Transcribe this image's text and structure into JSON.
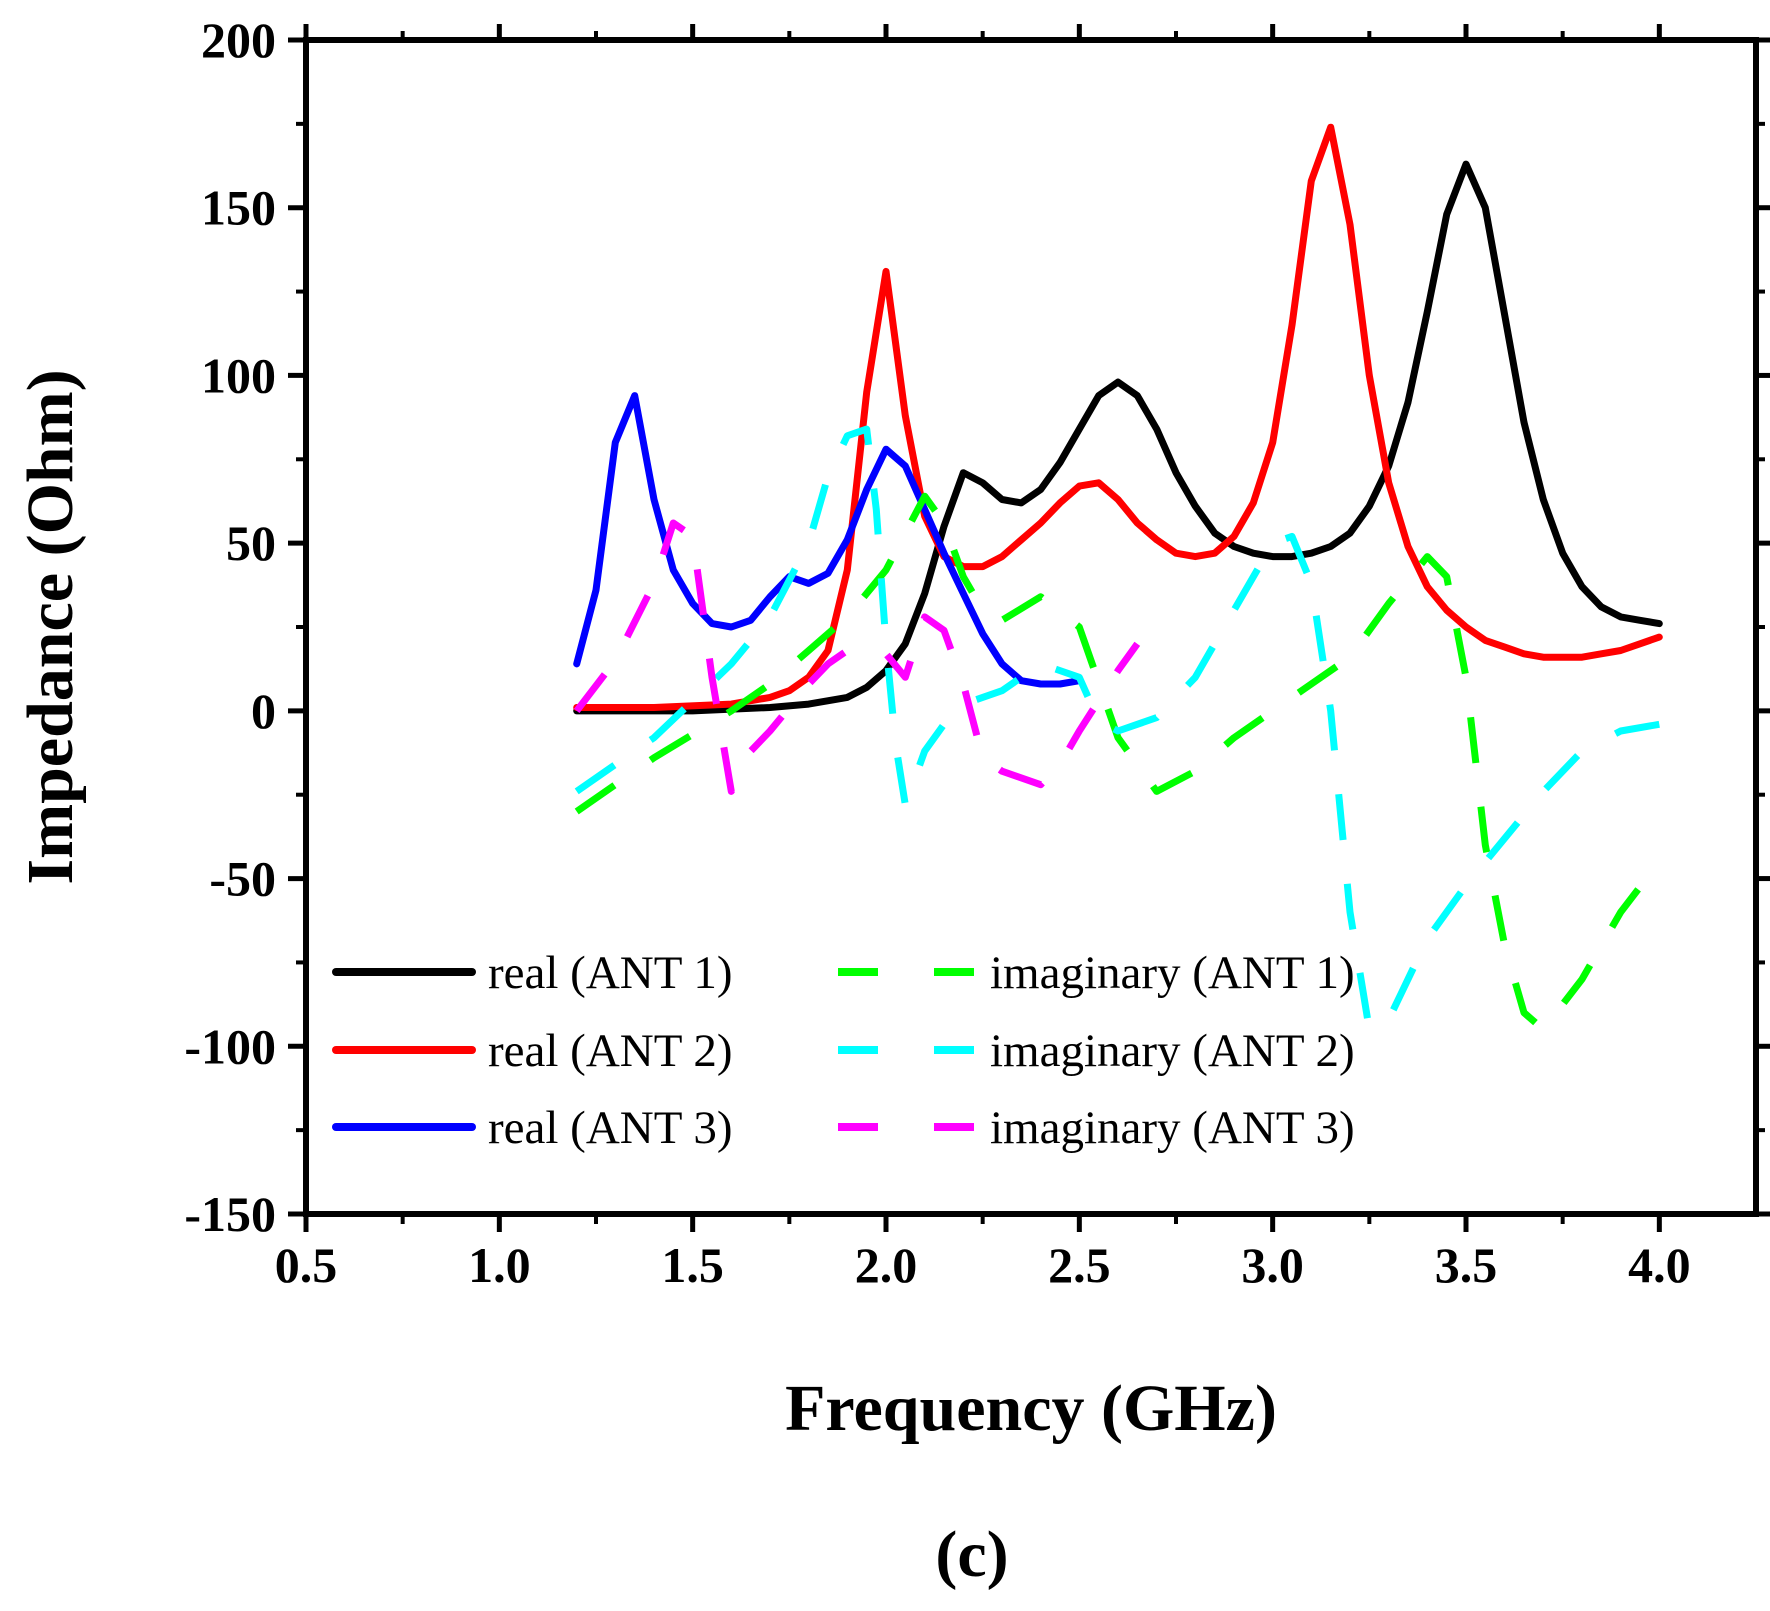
{
  "chart_data": {
    "type": "line",
    "xlabel": "Frequency (GHz)",
    "ylabel": "Impedance (Ohm)",
    "xlim": [
      0.5,
      4.25
    ],
    "ylim": [
      -150,
      200
    ],
    "xticks": [
      0.5,
      1.0,
      1.5,
      2.0,
      2.5,
      3.0,
      3.5,
      4.0
    ],
    "xtick_labels": [
      "0.5",
      "1.0",
      "1.5",
      "2.0",
      "2.5",
      "3.0",
      "3.5",
      "4.0"
    ],
    "yticks": [
      -150,
      -100,
      -50,
      0,
      50,
      100,
      150,
      200
    ],
    "ytick_labels": [
      "-150",
      "-100",
      "-50",
      "0",
      "50",
      "100",
      "150",
      "200"
    ],
    "grid": false,
    "legend_position": "bottom-left",
    "caption": "(c)",
    "series": [
      {
        "name": "real (ANT 1)",
        "color": "#000000",
        "dash": "solid",
        "x": [
          1.2,
          1.5,
          1.7,
          1.8,
          1.9,
          1.95,
          2.0,
          2.05,
          2.1,
          2.15,
          2.2,
          2.25,
          2.3,
          2.35,
          2.4,
          2.45,
          2.5,
          2.55,
          2.6,
          2.65,
          2.7,
          2.75,
          2.8,
          2.85,
          2.9,
          2.95,
          3.0,
          3.05,
          3.1,
          3.15,
          3.2,
          3.25,
          3.3,
          3.35,
          3.4,
          3.45,
          3.5,
          3.55,
          3.6,
          3.65,
          3.7,
          3.75,
          3.8,
          3.85,
          3.9,
          3.95,
          4.0
        ],
        "y": [
          0,
          0,
          1,
          2,
          4,
          7,
          12,
          20,
          35,
          55,
          71,
          68,
          63,
          62,
          66,
          74,
          84,
          94,
          98,
          94,
          84,
          71,
          61,
          53,
          49,
          47,
          46,
          46,
          47,
          49,
          53,
          61,
          73,
          92,
          119,
          148,
          163,
          150,
          118,
          86,
          63,
          47,
          37,
          31,
          28,
          27,
          26
        ]
      },
      {
        "name": "real (ANT 2)",
        "color": "#ff0000",
        "dash": "solid",
        "x": [
          1.2,
          1.4,
          1.6,
          1.7,
          1.75,
          1.8,
          1.85,
          1.9,
          1.95,
          2.0,
          2.05,
          2.1,
          2.15,
          2.2,
          2.25,
          2.3,
          2.35,
          2.4,
          2.45,
          2.5,
          2.55,
          2.6,
          2.65,
          2.7,
          2.75,
          2.8,
          2.85,
          2.9,
          2.95,
          3.0,
          3.05,
          3.1,
          3.15,
          3.2,
          3.25,
          3.3,
          3.35,
          3.4,
          3.45,
          3.5,
          3.55,
          3.6,
          3.65,
          3.7,
          3.75,
          3.8,
          3.85,
          3.9,
          3.95,
          4.0
        ],
        "y": [
          1,
          1,
          2,
          4,
          6,
          10,
          18,
          42,
          95,
          131,
          88,
          58,
          46,
          43,
          43,
          46,
          51,
          56,
          62,
          67,
          68,
          63,
          56,
          51,
          47,
          46,
          47,
          52,
          62,
          80,
          115,
          158,
          174,
          145,
          100,
          68,
          49,
          37,
          30,
          25,
          21,
          19,
          17,
          16,
          16,
          16,
          17,
          18,
          20,
          22
        ]
      },
      {
        "name": "real (ANT 3)",
        "color": "#0000ff",
        "dash": "solid",
        "x": [
          1.2,
          1.25,
          1.3,
          1.35,
          1.4,
          1.45,
          1.5,
          1.55,
          1.6,
          1.65,
          1.7,
          1.75,
          1.8,
          1.85,
          1.9,
          1.95,
          2.0,
          2.05,
          2.1,
          2.15,
          2.2,
          2.25,
          2.3,
          2.35,
          2.4,
          2.45,
          2.5
        ],
        "y": [
          14,
          36,
          80,
          94,
          63,
          42,
          32,
          26,
          25,
          27,
          34,
          40,
          38,
          41,
          51,
          66,
          78,
          73,
          60,
          47,
          35,
          23,
          14,
          9,
          8,
          8,
          9
        ]
      },
      {
        "name": "imaginary (ANT 1)",
        "color": "#00ff00",
        "dash": "dashed",
        "x": [
          1.2,
          1.4,
          1.6,
          1.7,
          1.8,
          1.9,
          2.0,
          2.1,
          2.15,
          2.2,
          2.25,
          2.3,
          2.4,
          2.5,
          2.6,
          2.7,
          2.8,
          2.9,
          3.0,
          3.1,
          3.2,
          3.3,
          3.4,
          3.45,
          3.5,
          3.55,
          3.6,
          3.65,
          3.7,
          3.8,
          3.9,
          4.0
        ],
        "y": [
          -30,
          -14,
          0,
          8,
          18,
          28,
          42,
          64,
          56,
          40,
          30,
          27,
          34,
          25,
          -8,
          -24,
          -18,
          -8,
          0,
          8,
          16,
          32,
          46,
          40,
          10,
          -40,
          -70,
          -90,
          -95,
          -80,
          -60,
          -45
        ]
      },
      {
        "name": "imaginary (ANT 2)",
        "color": "#00ffff",
        "dash": "dashed",
        "x": [
          1.2,
          1.3,
          1.4,
          1.5,
          1.6,
          1.7,
          1.8,
          1.85,
          1.9,
          1.95,
          1.975,
          2.0,
          2.025,
          2.05,
          2.1,
          2.15,
          2.2,
          2.3,
          2.4,
          2.5,
          2.55,
          2.6,
          2.7,
          2.8,
          2.9,
          3.0,
          3.05,
          3.1,
          3.15,
          3.2,
          3.25,
          3.3,
          3.4,
          3.5,
          3.6,
          3.7,
          3.8,
          3.9,
          4.0
        ],
        "y": [
          -24,
          -16,
          -8,
          3,
          14,
          28,
          50,
          70,
          82,
          84,
          60,
          20,
          -10,
          -28,
          -12,
          -4,
          2,
          6,
          14,
          10,
          -3,
          -6,
          -2,
          10,
          30,
          50,
          52,
          38,
          0,
          -60,
          -95,
          -92,
          -68,
          -52,
          -38,
          -24,
          -12,
          -6,
          -4
        ]
      },
      {
        "name": "imaginary (ANT 3)",
        "color": "#ff00ff",
        "dash": "dashed",
        "x": [
          1.2,
          1.3,
          1.4,
          1.45,
          1.5,
          1.55,
          1.6,
          1.65,
          1.7,
          1.8,
          1.85,
          1.9,
          1.95,
          2.0,
          2.05,
          2.1,
          2.15,
          2.2,
          2.25,
          2.3,
          2.4,
          2.45,
          2.5,
          2.6,
          2.65
        ],
        "y": [
          0,
          15,
          38,
          56,
          52,
          10,
          -24,
          -12,
          -6,
          8,
          14,
          18,
          17,
          17,
          10,
          28,
          24,
          8,
          -14,
          -18,
          -22,
          -16,
          -6,
          12,
          20
        ]
      }
    ]
  }
}
